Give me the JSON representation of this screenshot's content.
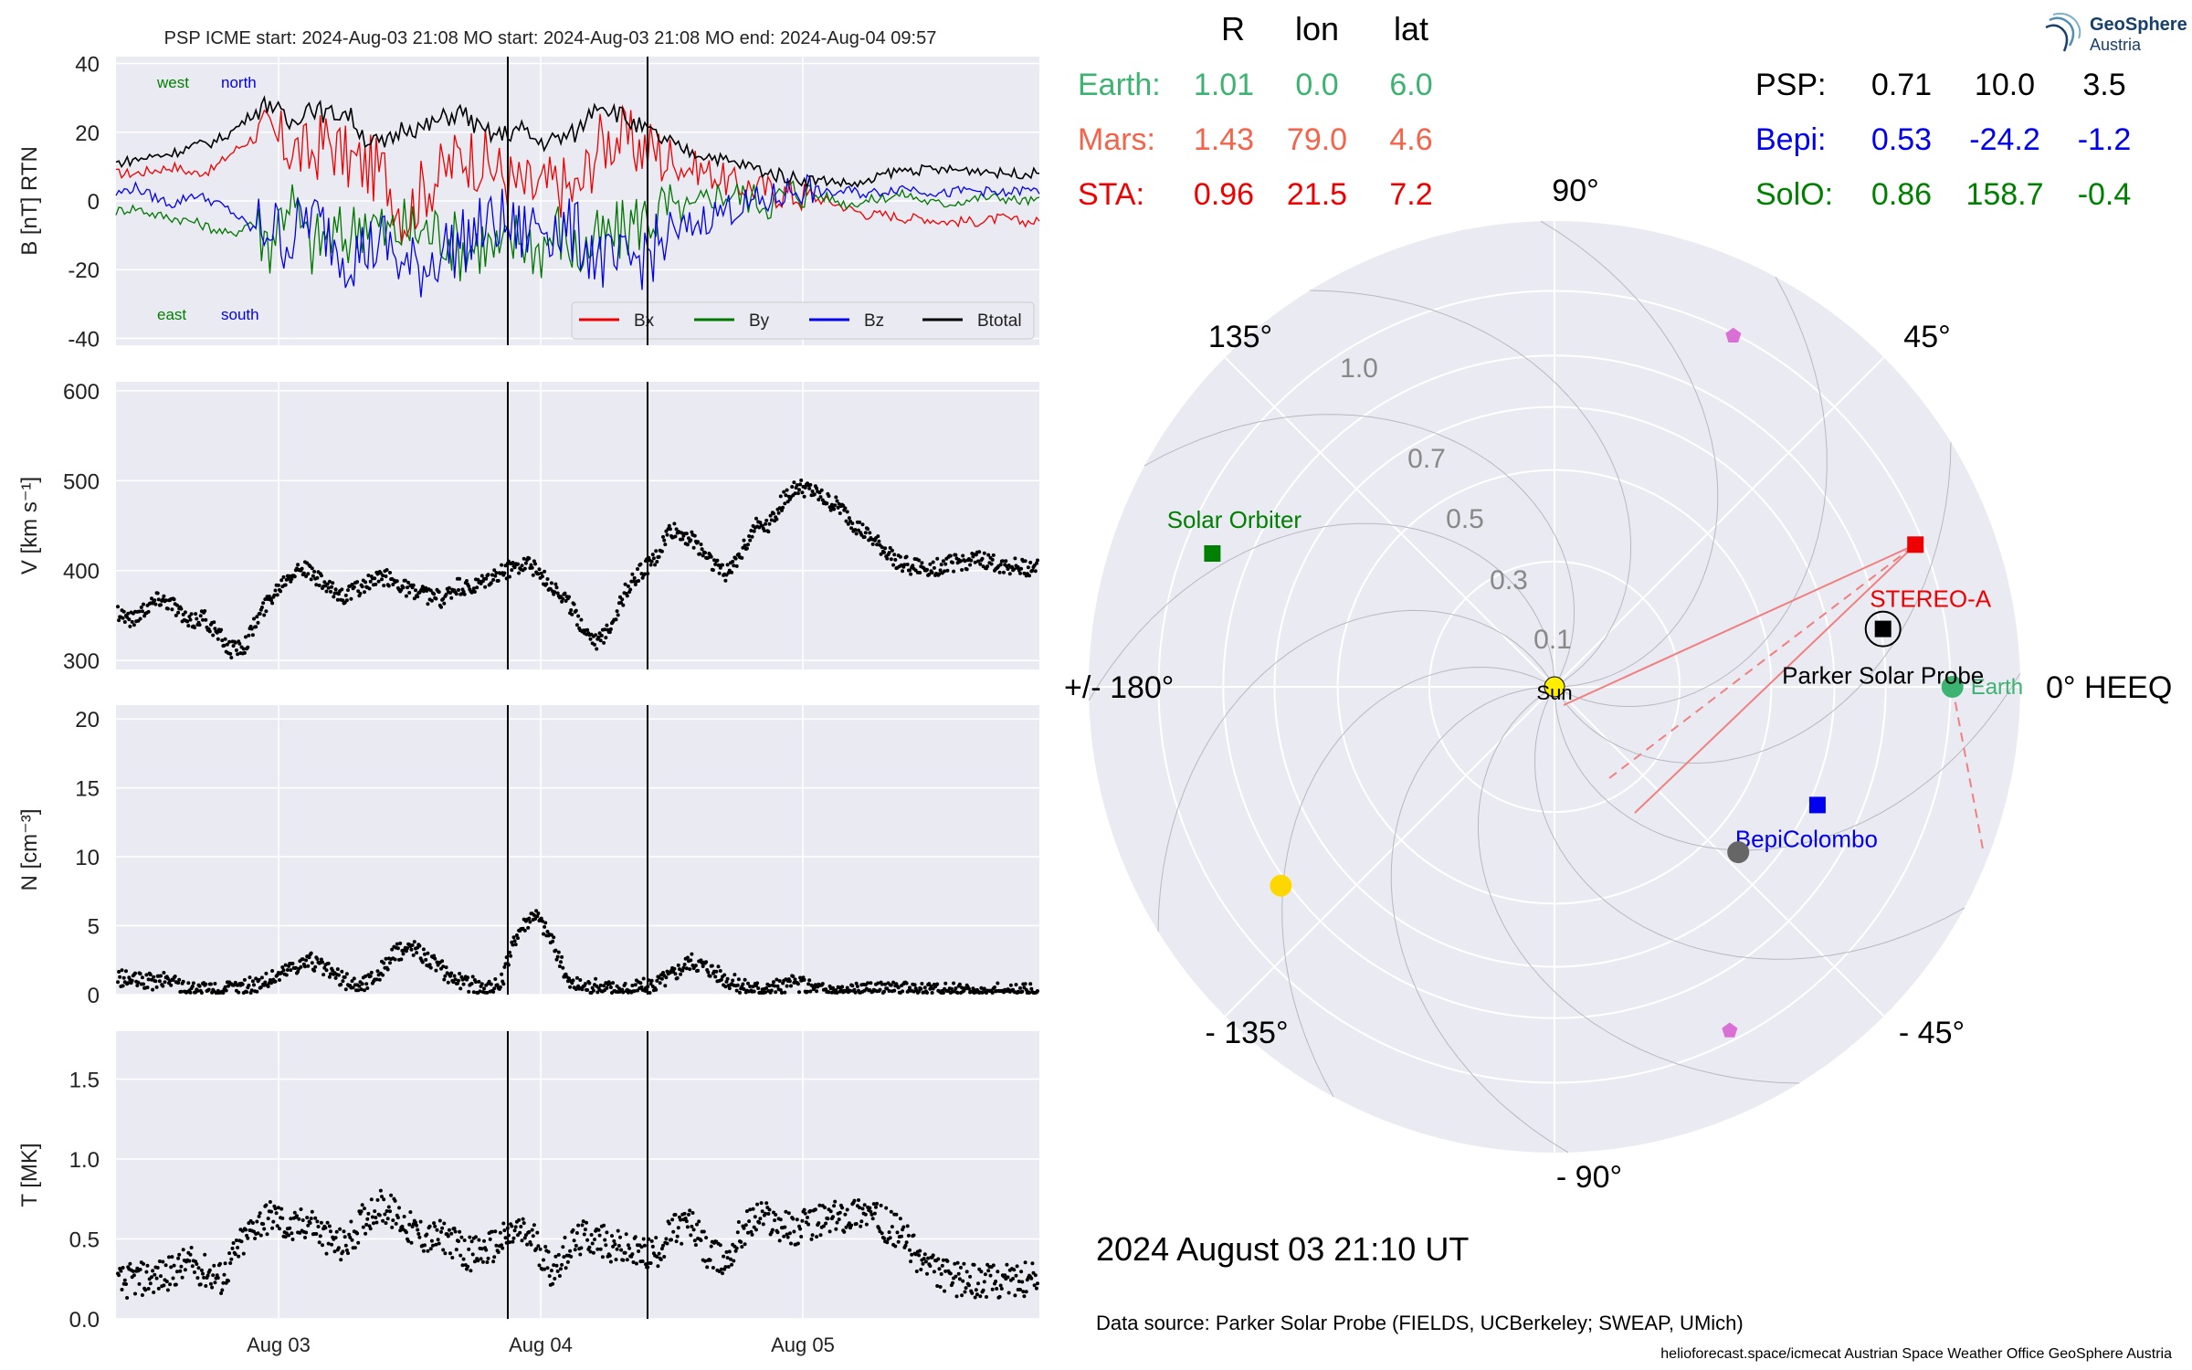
{
  "chart_data": [
    {
      "type": "line",
      "panel": "magnetic_field",
      "title": "PSP    ICME start: 2024-Aug-03 21:08   MO start: 2024-Aug-03 21:08   MO end: 2024-Aug-04 09:57",
      "ylabel": "B [nT] RTN",
      "ylim": [
        -42,
        42
      ],
      "yticks": [
        -40,
        -20,
        0,
        20,
        40
      ],
      "xticks": [
        "Aug 03",
        "Aug 04",
        "Aug 05"
      ],
      "grid": true,
      "legend_position": "lower-right",
      "annotations": {
        "west": "west",
        "north": "north",
        "east": "east",
        "south": "south"
      },
      "event_markers": [
        "2024-Aug-03 21:08",
        "2024-Aug-04 09:57"
      ],
      "series": [
        {
          "name": "Bx",
          "color": "#ee0000",
          "values": [
            8,
            8,
            9,
            10,
            8,
            9,
            14,
            18,
            18,
            16,
            13,
            18,
            12,
            10,
            8,
            -5,
            4,
            8,
            14,
            12,
            8,
            4,
            3,
            5,
            2,
            16,
            19,
            16,
            15,
            10,
            10,
            8,
            5,
            4,
            3,
            2,
            1,
            0,
            -2,
            -4,
            -4,
            -5,
            -5,
            -6,
            -6,
            -6,
            -5,
            -6,
            -6
          ]
        },
        {
          "name": "By",
          "color": "#007700",
          "values": [
            -3,
            -2,
            -4,
            -5,
            -6,
            -8,
            -10,
            -6,
            -12,
            2,
            -14,
            -10,
            -11,
            -4,
            -10,
            -8,
            -9,
            -9,
            -14,
            -12,
            -16,
            -10,
            -14,
            -8,
            -16,
            -12,
            -10,
            -6,
            -4,
            -2,
            -3,
            2,
            2,
            1,
            -1,
            3,
            2,
            1,
            -1,
            0,
            1,
            2,
            0,
            -1,
            0,
            1,
            1,
            0,
            0
          ]
        },
        {
          "name": "Bz",
          "color": "#0000ee",
          "values": [
            2,
            4,
            1,
            -1,
            2,
            0,
            -3,
            -8,
            -7,
            -12,
            -4,
            -9,
            -16,
            -14,
            -12,
            -20,
            -19,
            -14,
            -12,
            -8,
            -6,
            -10,
            -6,
            -8,
            -10,
            -16,
            -20,
            -17,
            -14,
            -10,
            -7,
            -4,
            -2,
            -1,
            0,
            3,
            4,
            2,
            3,
            2,
            3,
            4,
            3,
            2,
            3,
            3,
            2,
            3,
            3
          ]
        },
        {
          "name": "Btotal",
          "color": "#000000",
          "values": [
            11,
            12,
            13,
            14,
            16,
            17,
            20,
            25,
            29,
            22,
            28,
            25,
            26,
            18,
            16,
            22,
            21,
            24,
            26,
            20,
            19,
            21,
            17,
            18,
            20,
            29,
            26,
            22,
            19,
            16,
            14,
            13,
            11,
            10,
            8,
            7,
            6,
            6,
            5,
            5,
            8,
            9,
            9,
            9,
            9,
            9,
            8,
            8,
            8
          ]
        }
      ]
    },
    {
      "type": "scatter",
      "panel": "speed",
      "ylabel": "V [km s$^{-1}$]",
      "ylim": [
        290,
        610
      ],
      "yticks": [
        300,
        400,
        500,
        600
      ],
      "xticks": [
        "Aug 03",
        "Aug 04",
        "Aug 05"
      ],
      "grid": true,
      "values": [
        355,
        345,
        360,
        370,
        362,
        340,
        350,
        330,
        312,
        318,
        350,
        375,
        395,
        405,
        392,
        378,
        372,
        380,
        388,
        392,
        385,
        375,
        372,
        368,
        382,
        378,
        388,
        396,
        405,
        410,
        392,
        380,
        360,
        335,
        320,
        345,
        380,
        400,
        412,
        445,
        440,
        428,
        410,
        395,
        420,
        450,
        452,
        478,
        493,
        488,
        478,
        470,
        452,
        438,
        425,
        412,
        405,
        402,
        404,
        408,
        410,
        412,
        408,
        406,
        404,
        402
      ]
    },
    {
      "type": "scatter",
      "panel": "density",
      "ylabel": "N [cm$^{-3}$]",
      "ylim": [
        0,
        21
      ],
      "yticks": [
        0,
        5,
        10,
        15,
        20
      ],
      "xticks": [
        "Aug 03",
        "Aug 04",
        "Aug 05"
      ],
      "grid": true,
      "values": [
        1.2,
        1.0,
        0.9,
        1.1,
        0.4,
        0.3,
        0.3,
        0.5,
        0.8,
        1.2,
        2.0,
        2.5,
        1.8,
        1.0,
        0.6,
        1.5,
        3.0,
        3.5,
        2.5,
        1.5,
        0.8,
        0.6,
        0.5,
        4.5,
        6.0,
        4.0,
        0.8,
        0.6,
        0.5,
        0.4,
        0.5,
        0.8,
        1.5,
        2.5,
        2.0,
        1.2,
        0.6,
        0.4,
        0.5,
        0.8,
        0.5,
        0.3,
        0.2,
        0.2,
        0.3,
        0.3,
        0.2,
        0.2,
        0.2,
        0.2,
        0.2,
        0.2,
        0.2,
        0.2
      ]
    },
    {
      "type": "scatter",
      "panel": "temperature",
      "ylabel": "T [MK]",
      "ylim": [
        0,
        1.8
      ],
      "yticks": [
        0.0,
        0.5,
        1.0,
        1.5
      ],
      "xticks": [
        "Aug 03",
        "Aug 04",
        "Aug 05"
      ],
      "grid": true,
      "values": [
        0.22,
        0.25,
        0.26,
        0.28,
        0.35,
        0.3,
        0.25,
        0.45,
        0.6,
        0.65,
        0.55,
        0.62,
        0.5,
        0.45,
        0.6,
        0.72,
        0.65,
        0.55,
        0.5,
        0.52,
        0.4,
        0.42,
        0.48,
        0.55,
        0.5,
        0.3,
        0.45,
        0.52,
        0.48,
        0.44,
        0.4,
        0.42,
        0.55,
        0.6,
        0.4,
        0.35,
        0.55,
        0.65,
        0.6,
        0.55,
        0.6,
        0.62,
        0.65,
        0.68,
        0.6,
        0.55,
        0.4,
        0.3,
        0.25,
        0.24,
        0.23,
        0.24,
        0.25,
        0.24
      ]
    },
    {
      "type": "polar",
      "panel": "positions",
      "angle_labels": [
        "90°",
        "45°",
        "0° HEEQ",
        "- 45°",
        "- 90°",
        "- 135°",
        "+/- 180°",
        "135°"
      ],
      "radial_ticks": [
        "0.1",
        "0.3",
        "0.5",
        "0.7",
        "1.0"
      ],
      "radial_values": [
        0.1,
        0.3,
        0.5,
        0.7,
        1.0
      ],
      "grid": true,
      "bodies": [
        {
          "name": "Sun",
          "r": 0.0,
          "lon": 0,
          "color": "#ffee00",
          "marker": "circle"
        },
        {
          "name": "Earth",
          "r": 1.01,
          "lon": 0.0,
          "color": "#3cb371",
          "marker": "circle"
        },
        {
          "name": "STEREO-A",
          "r": 0.96,
          "lon": 21.5,
          "color": "#ee0000",
          "marker": "square"
        },
        {
          "name": "Parker Solar Probe",
          "r": 0.71,
          "lon": 10.0,
          "color": "#000000",
          "marker": "square"
        },
        {
          "name": "BepiColombo",
          "r": 0.53,
          "lon": -24.2,
          "color": "#0000ee",
          "marker": "square"
        },
        {
          "name": "Solar Orbiter",
          "r": 0.86,
          "lon": 158.7,
          "color": "#008000",
          "marker": "square"
        },
        {
          "name": "",
          "r": 0.39,
          "lon": -42,
          "color": "#666666",
          "marker": "circle"
        },
        {
          "name": "",
          "r": 0.73,
          "lon": -144,
          "color": "#ffd700",
          "marker": "circle"
        },
        {
          "name": "",
          "r": 0.99,
          "lon": 63,
          "color": "#da70d6",
          "marker": "pentagon"
        },
        {
          "name": "",
          "r": 0.95,
          "lon": -63,
          "color": "#da70d6",
          "marker": "pentagon"
        }
      ]
    }
  ],
  "position_table": {
    "headers": [
      "R",
      "lon",
      "lat"
    ],
    "rows": [
      {
        "name": "Earth:",
        "R": "1.01",
        "lon": "0.0",
        "lat": "6.0",
        "color": "#3cb371"
      },
      {
        "name": "Mars:",
        "R": "1.43",
        "lon": "79.0",
        "lat": "4.6",
        "color": "#f4634a"
      },
      {
        "name": "STA:",
        "R": "0.96",
        "lon": "21.5",
        "lat": "7.2",
        "color": "#ee0000"
      },
      {
        "name": "PSP:",
        "R": "0.71",
        "lon": "10.0",
        "lat": "3.5",
        "color": "#000000"
      },
      {
        "name": "Bepi:",
        "R": "0.53",
        "lon": "-24.2",
        "lat": "-1.2",
        "color": "#0000ee"
      },
      {
        "name": "SolO:",
        "R": "0.86",
        "lon": "158.7",
        "lat": "-0.4",
        "color": "#008000"
      }
    ]
  },
  "timestamp": "2024 August 03  21:10 UT",
  "data_source": "Data source: Parker Solar Probe (FIELDS, UCBerkeley; SWEAP, UMich)",
  "footer": "helioforecast.space/icmecat   Austrian Space Weather Office   GeoSphere Austria",
  "logo": {
    "title": "GeoSphere",
    "subtitle": "Austria"
  }
}
